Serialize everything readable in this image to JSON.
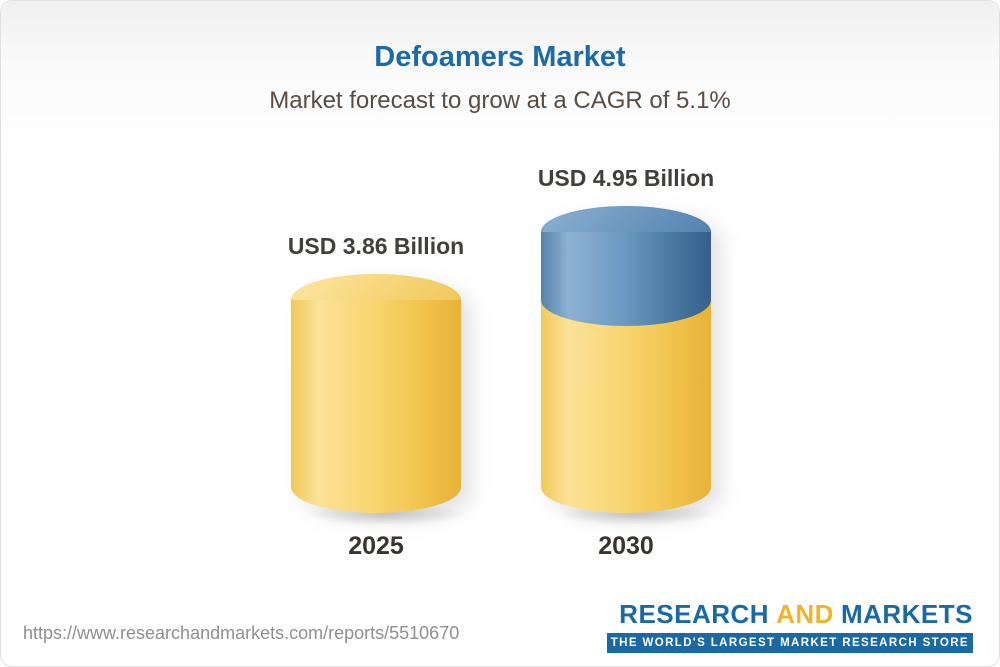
{
  "header": {
    "title": "Defoamers Market",
    "subtitle": "Market forecast to grow at a CAGR of 5.1%"
  },
  "chart_data": {
    "type": "bar",
    "title": "Defoamers Market",
    "subtitle": "Market forecast to grow at a CAGR of 5.1%",
    "categories": [
      "2025",
      "2030"
    ],
    "values": [
      3.86,
      4.95
    ],
    "value_labels": [
      "USD 3.86 Billion",
      "USD 4.95 Billion"
    ],
    "unit": "USD Billion",
    "cagr": "5.1%",
    "ylim": [
      0,
      4.95
    ],
    "grid": "off",
    "legend": "none",
    "colors": {
      "bar_base": "#F5CE62",
      "bar_growth_cap": "#4C7FAB",
      "title_blue": "#1C6BA6",
      "label_dark": "#423E3B"
    }
  },
  "footer": {
    "report_url": "https://www.researchandmarkets.com/reports/5510670",
    "logo": {
      "word_research": "RESEARCH",
      "word_and": "AND",
      "word_markets": "MARKETS",
      "tagline": "THE WORLD'S LARGEST MARKET RESEARCH STORE"
    }
  }
}
